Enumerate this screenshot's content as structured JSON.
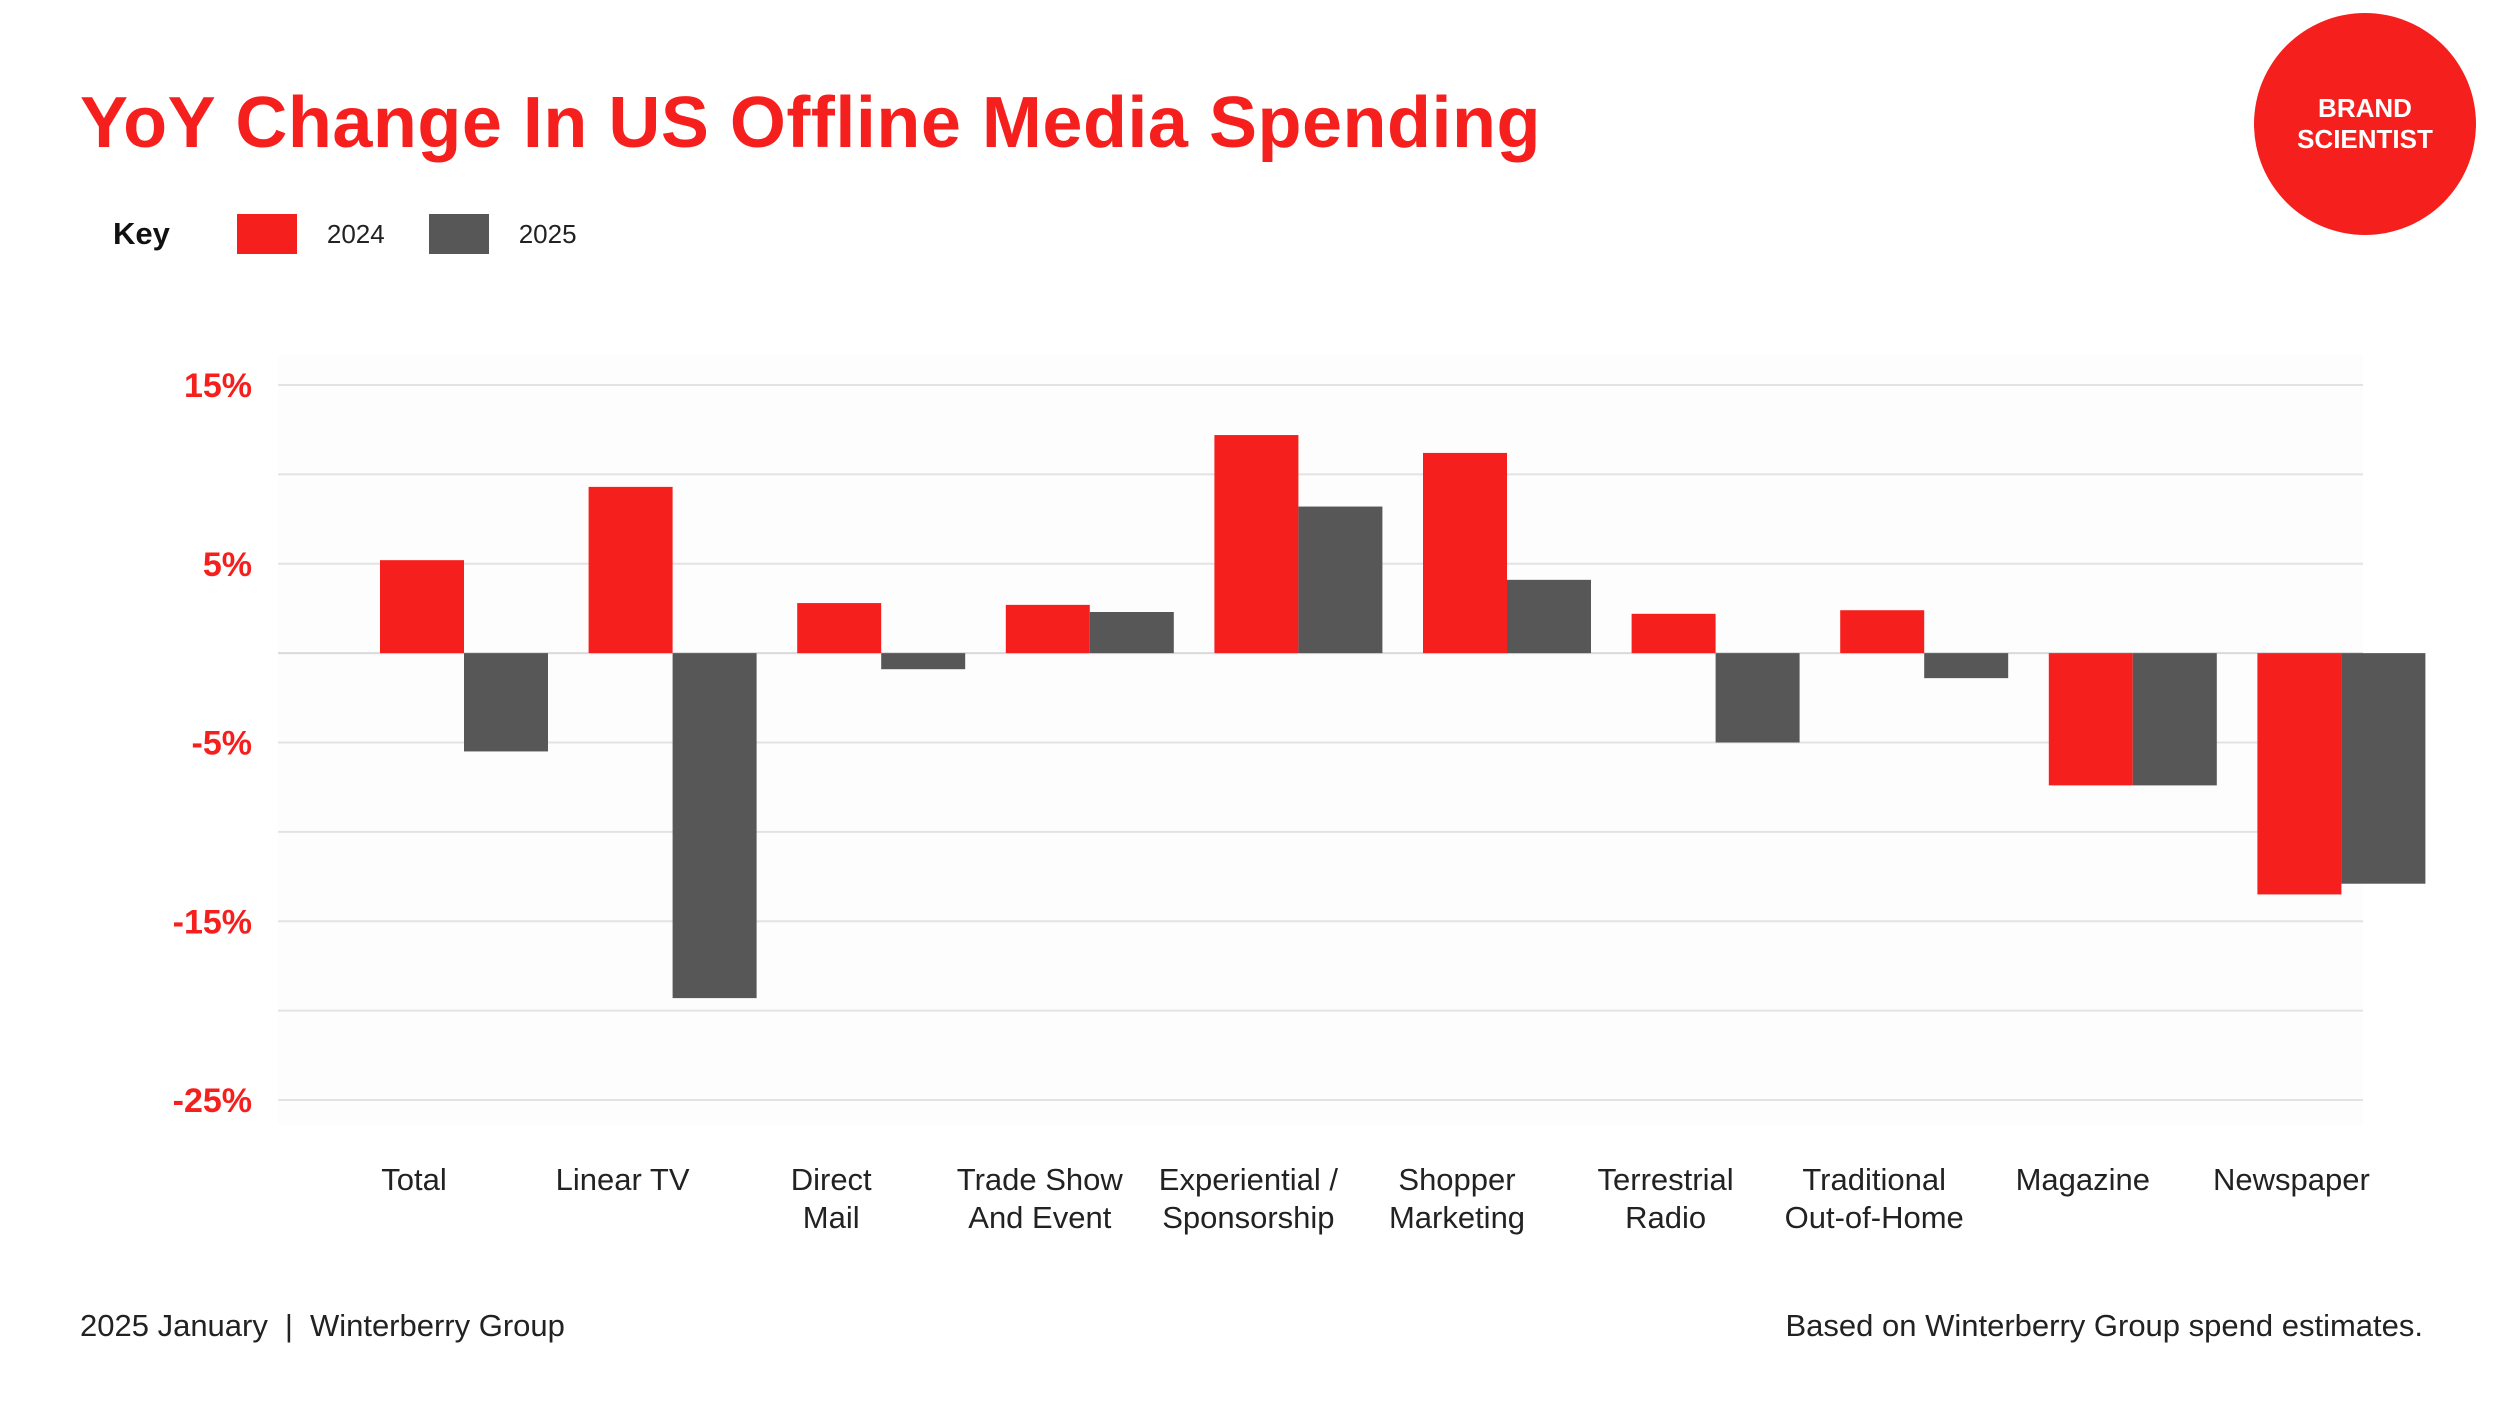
{
  "title": "YoY Change In US Offline Media Spending",
  "brand": {
    "line1": "BRAND",
    "line2": "SCIENTIST"
  },
  "legend": {
    "key_label": "Key"
  },
  "footer": {
    "date": "2025 January",
    "separator": "|",
    "source": "Winterberry Group",
    "note": "Based on Winterberry Group spend estimates."
  },
  "colors": {
    "series_2024": "#f5201e",
    "series_2025": "#575757",
    "title": "#f5201e",
    "grid": "#e3e3e3"
  },
  "chart_data": {
    "type": "bar",
    "title": "YoY Change In US Offline Media Spending",
    "xlabel": "",
    "ylabel": "",
    "ylim": [
      -25,
      15
    ],
    "y_ticks": [
      15,
      5,
      -5,
      -15,
      -25
    ],
    "y_tick_labels": [
      "15%",
      "5%",
      "-5%",
      "-15%",
      "-25%"
    ],
    "grid": true,
    "legend_position": "top-left",
    "categories": [
      [
        "Total"
      ],
      [
        "Linear TV"
      ],
      [
        "Direct",
        "Mail"
      ],
      [
        "Trade Show",
        "And Event"
      ],
      [
        "Experiential /",
        "Sponsorship"
      ],
      [
        "Shopper",
        "Marketing"
      ],
      [
        "Terrestrial",
        "Radio"
      ],
      [
        "Traditional",
        "Out-of-Home"
      ],
      [
        "Magazine"
      ],
      [
        "Newspaper"
      ]
    ],
    "series": [
      {
        "name": "2024",
        "color": "#f5201e",
        "values": [
          5.2,
          9.3,
          2.8,
          2.7,
          12.2,
          11.2,
          2.2,
          2.4,
          -7.4,
          -13.5
        ]
      },
      {
        "name": "2025",
        "color": "#575757",
        "values": [
          -5.5,
          -19.3,
          -0.9,
          2.3,
          8.2,
          4.1,
          -5.0,
          -1.4,
          -7.4,
          -12.9
        ]
      }
    ]
  }
}
